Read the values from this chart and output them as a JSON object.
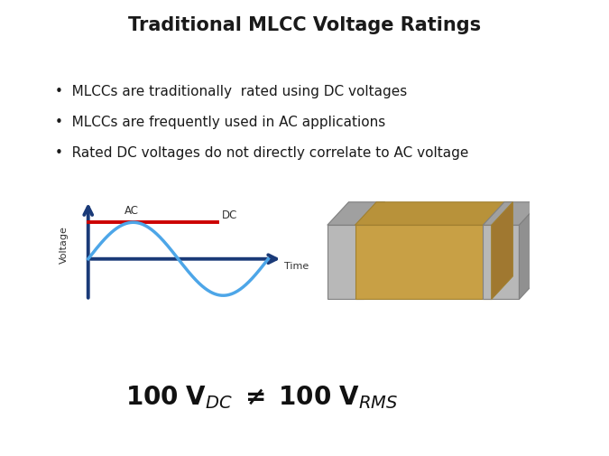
{
  "title": "Traditional MLCC Voltage Ratings",
  "title_fontsize": 15,
  "title_fontweight": "bold",
  "bg_color": "#ffffff",
  "bullets": [
    "MLCCs are traditionally  rated using DC voltages",
    "MLCCs are frequently used in AC applications",
    "Rated DC voltages do not directly correlate to AC voltage"
  ],
  "bullet_fontsize": 11,
  "axis_color": "#1a3a78",
  "ac_color": "#4da6e8",
  "dc_color": "#cc0000",
  "ac_label": "AC",
  "dc_label": "DC",
  "voltage_label": "Voltage",
  "time_label": "Time",
  "equation_fontsize": 20
}
